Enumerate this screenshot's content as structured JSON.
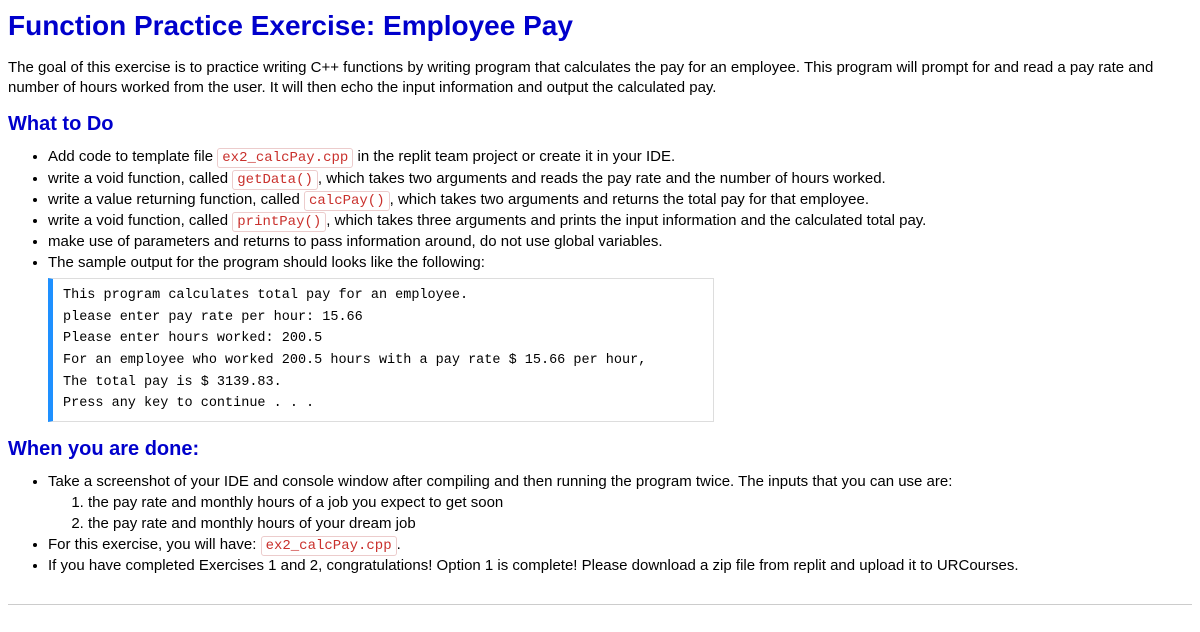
{
  "title": "Function Practice Exercise: Employee Pay",
  "intro": "The goal of this exercise is to practice writing C++ functions by writing program that calculates the pay for an employee. This program will prompt for and read a pay rate and number of hours worked from the user. It will then echo the input information and output the calculated pay.",
  "section1_heading": "What to Do",
  "todo": {
    "item1_a": "Add code to template file ",
    "item1_code": "ex2_calcPay.cpp",
    "item1_b": " in the replit team project or create it in your IDE.",
    "item2_a": "write a void function, called ",
    "item2_code": "getData()",
    "item2_b": ", which takes two arguments and reads the pay rate and the number of hours worked.",
    "item3_a": "write a value returning function, called ",
    "item3_code": "calcPay()",
    "item3_b": ", which takes two arguments and returns the total pay for that employee.",
    "item4_a": "write a void function, called ",
    "item4_code": "printPay()",
    "item4_b": ", which takes three arguments and prints the input information and the calculated total pay.",
    "item5": "make use of parameters and returns to pass information around, do not use global variables.",
    "item6": "The sample output for the program should looks like the following:"
  },
  "sample_output": "This program calculates total pay for an employee.\nplease enter pay rate per hour: 15.66\nPlease enter hours worked: 200.5\nFor an employee who worked 200.5 hours with a pay rate $ 15.66 per hour,\nThe total pay is $ 3139.83.\nPress any key to continue . . .",
  "section2_heading": "When you are done:",
  "done": {
    "item1": "Take a screenshot of your IDE and console window after compiling and then running the program twice. The inputs that you can use are:",
    "sub1": "the pay rate and monthly hours of a job you expect to get soon",
    "sub2": "the pay rate and monthly hours of your dream job",
    "item2_a": "For this exercise, you will have: ",
    "item2_code": "ex2_calcPay.cpp",
    "item2_b": ".",
    "item3": "If you have completed Exercises 1 and 2, congratulations! Option 1 is complete! Please download a zip file from replit and upload it to URCourses."
  }
}
